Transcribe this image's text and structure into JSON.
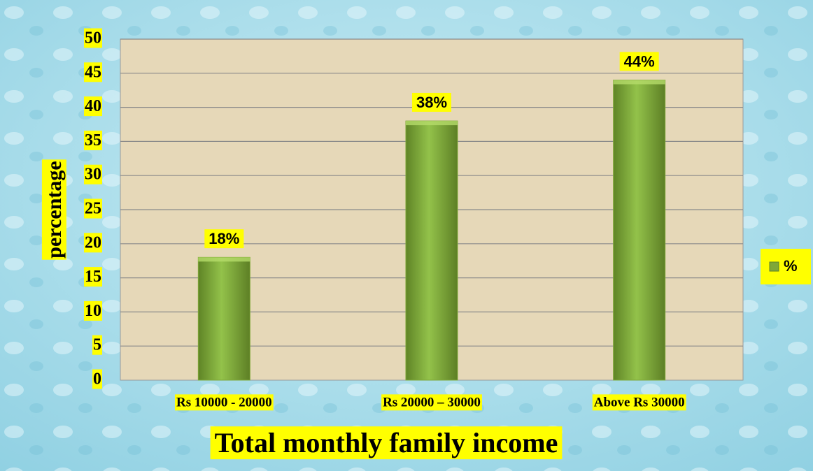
{
  "chart_data": {
    "type": "bar",
    "categories": [
      "Rs 10000 - 20000",
      "Rs 20000 – 30000",
      "Above Rs 30000"
    ],
    "series": [
      {
        "name": "%",
        "color": "#7fa838",
        "values": [
          18,
          38,
          44
        ],
        "value_labels": [
          "18%",
          "38%",
          "44%"
        ]
      }
    ],
    "xlabel": "Total monthly family income",
    "ylabel": "percentage",
    "ylim": [
      0,
      50
    ],
    "yticks": [
      0,
      5,
      10,
      15,
      20,
      25,
      30,
      35,
      40,
      45,
      50
    ],
    "grid": true,
    "legend": "right"
  }
}
